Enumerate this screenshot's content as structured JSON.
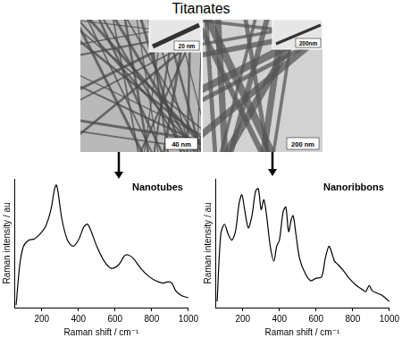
{
  "title": "Titanates",
  "images": [
    {
      "scale_bar": "40 nm",
      "inset_scale_bar": "20 nm"
    },
    {
      "scale_bar": "200 nm",
      "inset_scale_bar": "200nm"
    }
  ],
  "chart_data": [
    {
      "type": "line",
      "title": "Nanotubes",
      "xlabel": "Raman shift / cm⁻¹",
      "ylabel": "Raman intensity / au",
      "x": [
        60,
        80,
        100,
        130,
        160,
        190,
        220,
        250,
        270,
        280,
        290,
        310,
        340,
        370,
        400,
        430,
        450,
        470,
        500,
        540,
        580,
        620,
        650,
        670,
        700,
        740,
        780,
        820,
        860,
        890,
        910,
        930,
        960,
        1000
      ],
      "values": [
        0.02,
        0.35,
        0.5,
        0.55,
        0.56,
        0.6,
        0.66,
        0.8,
        0.97,
        1.0,
        0.93,
        0.72,
        0.55,
        0.5,
        0.55,
        0.66,
        0.68,
        0.62,
        0.5,
        0.38,
        0.32,
        0.35,
        0.42,
        0.43,
        0.4,
        0.32,
        0.26,
        0.22,
        0.2,
        0.21,
        0.2,
        0.14,
        0.1,
        0.08
      ],
      "color": "#000000",
      "marker": "none",
      "xlim": [
        50,
        1000
      ],
      "xticks": [
        200,
        400,
        600,
        800,
        1000
      ],
      "ylim": [
        0,
        1.05
      ],
      "grid": false,
      "tick_labels": "x"
    },
    {
      "type": "line",
      "title": "Nanoribbons",
      "xlabel": "Raman shift / cm⁻¹",
      "ylabel": "Raman intensity / au",
      "x": [
        60,
        80,
        100,
        120,
        140,
        160,
        180,
        195,
        210,
        230,
        250,
        270,
        285,
        300,
        315,
        330,
        350,
        370,
        385,
        400,
        420,
        435,
        450,
        465,
        475,
        490,
        510,
        540,
        570,
        600,
        630,
        650,
        670,
        685,
        700,
        720,
        750,
        780,
        820,
        850,
        870,
        890,
        905,
        930,
        960,
        1000
      ],
      "values": [
        0.05,
        0.6,
        0.68,
        0.6,
        0.55,
        0.62,
        0.85,
        0.92,
        0.8,
        0.65,
        0.75,
        0.95,
        0.97,
        0.8,
        0.88,
        0.75,
        0.5,
        0.38,
        0.5,
        0.55,
        0.78,
        0.82,
        0.62,
        0.72,
        0.75,
        0.6,
        0.4,
        0.28,
        0.22,
        0.24,
        0.25,
        0.4,
        0.5,
        0.45,
        0.38,
        0.35,
        0.3,
        0.24,
        0.18,
        0.15,
        0.13,
        0.18,
        0.14,
        0.12,
        0.1,
        0.05
      ],
      "color": "#000000",
      "marker": "none",
      "xlim": [
        50,
        1000
      ],
      "xticks": [
        200,
        400,
        600,
        800,
        1000
      ],
      "ylim": [
        0,
        1.05
      ],
      "grid": false,
      "tick_labels": "x"
    }
  ]
}
